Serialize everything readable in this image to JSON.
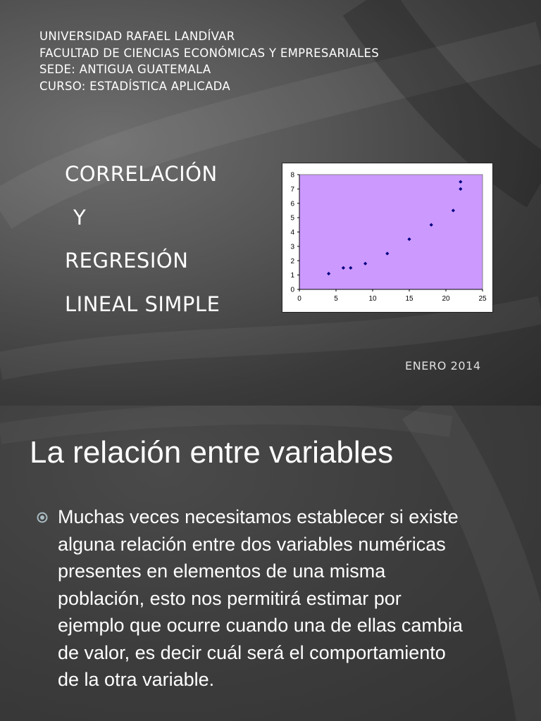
{
  "slide1": {
    "header_lines": [
      "UNIVERSIDAD RAFAEL LANDÍVAR",
      "FACULTAD DE CIENCIAS ECONÓMICAS Y EMPRESARIALES",
      "SEDE: ANTIGUA GUATEMALA",
      "CURSO: ESTADÍSTICA APLICADA"
    ],
    "title_lines": [
      "CORRELACIÓN",
      "Y",
      "REGRESIÓN",
      "LINEAL SIMPLE"
    ],
    "date": "ENERO 2014"
  },
  "chart_data": {
    "type": "scatter",
    "title": "",
    "xlabel": "",
    "ylabel": "",
    "xlim": [
      0,
      25
    ],
    "ylim": [
      0,
      8
    ],
    "x_ticks": [
      0,
      5,
      10,
      15,
      20,
      25
    ],
    "y_ticks": [
      0,
      1,
      2,
      3,
      4,
      5,
      6,
      7,
      8
    ],
    "grid": false,
    "legend": "none",
    "plot_background": "#cc99ff",
    "marker_color": "#000080",
    "points": [
      {
        "x": 4,
        "y": 1.1
      },
      {
        "x": 6,
        "y": 1.5
      },
      {
        "x": 7,
        "y": 1.5
      },
      {
        "x": 9,
        "y": 1.8
      },
      {
        "x": 12,
        "y": 2.5
      },
      {
        "x": 15,
        "y": 3.5
      },
      {
        "x": 18,
        "y": 4.5
      },
      {
        "x": 21,
        "y": 5.5
      },
      {
        "x": 22,
        "y": 7.0
      },
      {
        "x": 22,
        "y": 7.5
      }
    ]
  },
  "slide2": {
    "title": "La relación entre variables",
    "bullet_icon": "circle-bullet-icon",
    "bullet_text": "Muchas veces necesitamos establecer si existe alguna relación entre dos variables numéricas presentes en elementos de una misma población, esto nos permitirá estimar por ejemplo que ocurre cuando una de ellas cambia de valor, es decir cuál será el comportamiento de la otra variable."
  }
}
